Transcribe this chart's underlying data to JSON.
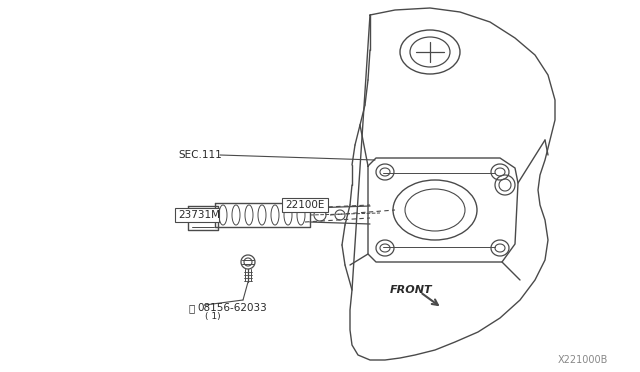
{
  "bg_color": "#f2f2f2",
  "line_color": "#4a4a4a",
  "text_color": "#2a2a2a",
  "watermark": "X221000B",
  "labels": {
    "SEC111": "SEC.111",
    "part1": "22100E",
    "part2": "23731M",
    "part3": "°08156-62033",
    "part3_sub": "( 1)",
    "front": "FRONT"
  },
  "fig_width": 6.4,
  "fig_height": 3.72,
  "dpi": 100
}
